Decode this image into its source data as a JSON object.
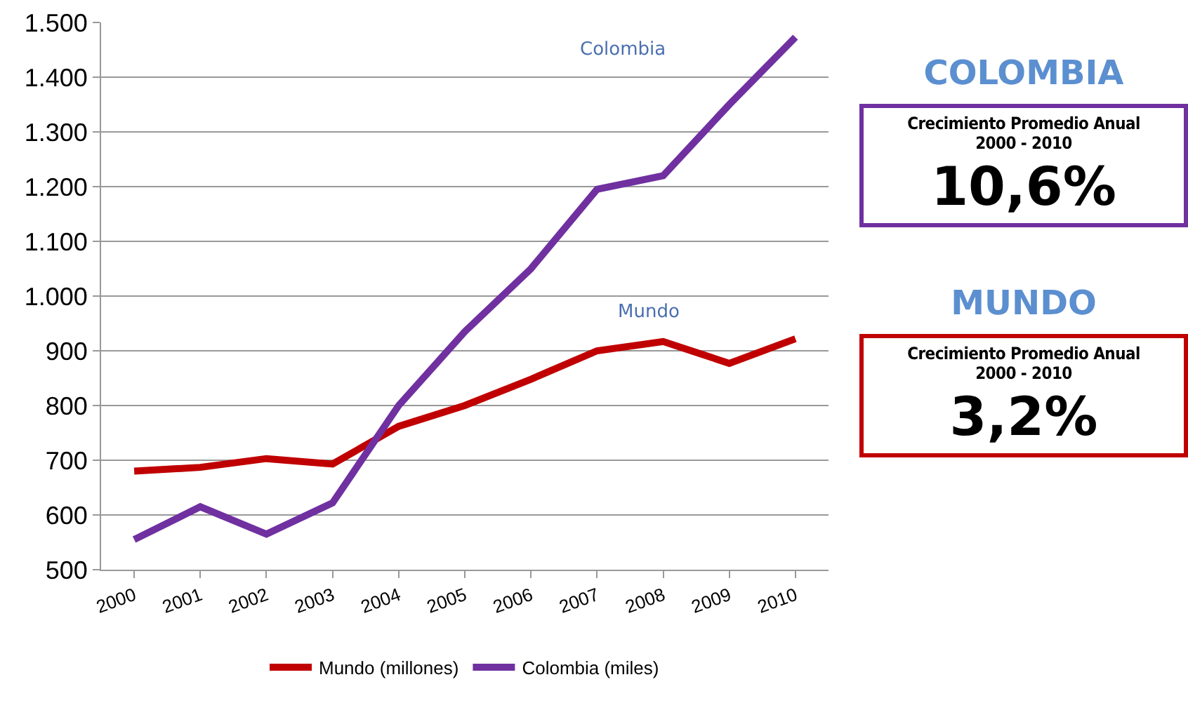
{
  "chart_data": {
    "type": "line",
    "categories": [
      "2000",
      "2001",
      "2002",
      "2003",
      "2004",
      "2005",
      "2006",
      "2007",
      "2008",
      "2009",
      "2010"
    ],
    "series": [
      {
        "name": "Mundo (millones)",
        "color": "#c00000",
        "values": [
          680,
          687,
          703,
          693,
          762,
          800,
          848,
          900,
          917,
          877,
          922
        ]
      },
      {
        "name": "Colombia (miles)",
        "color": "#7030a0",
        "values": [
          555,
          615,
          565,
          622,
          800,
          935,
          1050,
          1195,
          1220,
          1350,
          1473
        ]
      }
    ],
    "ylim": [
      500,
      1500
    ],
    "yticks": [
      {
        "value": 500,
        "label": "500"
      },
      {
        "value": 600,
        "label": "600"
      },
      {
        "value": 700,
        "label": "700"
      },
      {
        "value": 800,
        "label": "800"
      },
      {
        "value": 900,
        "label": "900"
      },
      {
        "value": 1000,
        "label": "1.000"
      },
      {
        "value": 1100,
        "label": "1.100"
      },
      {
        "value": 1200,
        "label": "1.200"
      },
      {
        "value": 1300,
        "label": "1.300"
      },
      {
        "value": 1400,
        "label": "1.400"
      },
      {
        "value": 1500,
        "label": "1.500"
      }
    ],
    "grid": "y",
    "legend": "bottom",
    "marker": "none",
    "line_style": "solid",
    "annotations": [
      "Colombia",
      "Mundo",
      "COLOMBIA",
      "Crecimiento Promedio Anual\n2000 - 2010",
      "10,6%",
      "MUNDO",
      "Crecimiento Promedio Anual\n2000 - 2010",
      "3,2%"
    ]
  }
}
